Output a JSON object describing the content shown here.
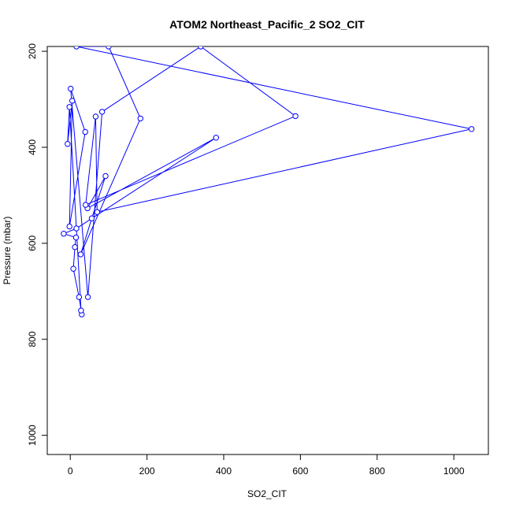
{
  "chart_data": {
    "type": "line",
    "title": "ATOM2 Northeast_Pacific_2 SO2_CIT",
    "xlabel": "SO2_CIT",
    "ylabel": "Pressure (mbar)",
    "xlim": [
      -60,
      1090
    ],
    "ylim": [
      1040,
      190
    ],
    "y_reversed": true,
    "x_ticks": [
      0,
      200,
      400,
      600,
      800,
      1000
    ],
    "y_ticks": [
      200,
      400,
      600,
      800,
      1000
    ],
    "x_tick_labels": [
      "0",
      "200",
      "400",
      "600",
      "800",
      "1000"
    ],
    "y_tick_labels": [
      "200",
      "400",
      "600",
      "800",
      "1000"
    ],
    "grid": false,
    "series": [
      {
        "color": "#0000ff",
        "marker": "open-circle",
        "points": [
          {
            "x": 30,
            "y": 748
          },
          {
            "x": 23,
            "y": 712
          },
          {
            "x": 8,
            "y": 653
          },
          {
            "x": 12,
            "y": 608
          },
          {
            "x": 15,
            "y": 588
          },
          {
            "x": -17,
            "y": 580
          },
          {
            "x": 16,
            "y": 569
          },
          {
            "x": 380,
            "y": 380
          },
          {
            "x": 45,
            "y": 527
          },
          {
            "x": 92,
            "y": 460
          },
          {
            "x": 56,
            "y": 548
          },
          {
            "x": 27,
            "y": 623
          },
          {
            "x": 183,
            "y": 340
          },
          {
            "x": 100,
            "y": 190
          },
          {
            "x": 16,
            "y": 190
          },
          {
            "x": 1046,
            "y": 362
          },
          {
            "x": 70,
            "y": 535
          },
          {
            "x": 66,
            "y": 336
          },
          {
            "x": 40,
            "y": 520
          },
          {
            "x": 587,
            "y": 335
          },
          {
            "x": 340,
            "y": 190
          },
          {
            "x": 83,
            "y": 326
          },
          {
            "x": 46,
            "y": 712
          },
          {
            "x": 1,
            "y": 278
          },
          {
            "x": 39,
            "y": 368
          },
          {
            "x": -2,
            "y": 565
          },
          {
            "x": 5,
            "y": 303
          },
          {
            "x": -7,
            "y": 393
          },
          {
            "x": -2,
            "y": 316
          },
          {
            "x": 28,
            "y": 740
          }
        ]
      }
    ]
  }
}
